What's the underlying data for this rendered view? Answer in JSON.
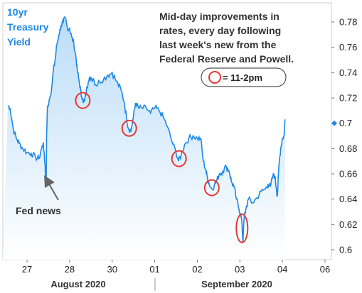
{
  "colors": {
    "line": "#1E88E5",
    "area_top": "#BBDDF8",
    "area_bottom": "#FFFFFF",
    "highlight": "#E53935",
    "title": "#1E88E5",
    "axis": "#777777",
    "grid": "#E8E8E8",
    "annotation_arrow": "#666666",
    "legend_border": "#555555"
  },
  "title_lines": [
    "10yr",
    "Treasury",
    "Yield"
  ],
  "annotation": {
    "lines": [
      "Mid-day improvements in",
      "rates, every day following",
      "last week's new from the",
      "Federal Reserve and Powell."
    ],
    "legend_text": "= 11-2pm"
  },
  "fed_label": "Fed news",
  "months": [
    {
      "label": "August 2020",
      "start": 0,
      "end": 2
    },
    {
      "label": "September 2020",
      "start": 3,
      "end": 7
    }
  ],
  "chart_data": {
    "type": "line",
    "subtype": "area",
    "series_name": "",
    "x_ticks": [
      "27",
      "28",
      "30",
      "01",
      "02",
      "03",
      "04",
      "06"
    ],
    "y_ticks": [
      "0.78",
      "0.76",
      "0.74",
      "0.72",
      "0.7",
      "0.68",
      "0.66",
      "0.64",
      "0.62",
      "0.6"
    ],
    "ylim": [
      0.6,
      0.785
    ],
    "xlim": [
      -0.45,
      7.0
    ],
    "grid": false,
    "last_value_marker": 0.7,
    "points": [
      [
        -0.45,
        0.714
      ],
      [
        -0.4,
        0.712
      ],
      [
        -0.32,
        0.695
      ],
      [
        -0.25,
        0.688
      ],
      [
        -0.18,
        0.684
      ],
      [
        -0.1,
        0.68
      ],
      [
        0.0,
        0.677
      ],
      [
        0.1,
        0.676
      ],
      [
        0.2,
        0.673
      ],
      [
        0.28,
        0.672
      ],
      [
        0.35,
        0.681
      ],
      [
        0.38,
        0.684
      ],
      [
        0.4,
        0.678
      ],
      [
        0.42,
        0.669
      ],
      [
        0.44,
        0.655
      ],
      [
        0.45,
        0.65
      ],
      [
        0.46,
        0.69
      ],
      [
        0.48,
        0.712
      ],
      [
        0.52,
        0.718
      ],
      [
        0.58,
        0.728
      ],
      [
        0.62,
        0.742
      ],
      [
        0.66,
        0.75
      ],
      [
        0.7,
        0.762
      ],
      [
        0.75,
        0.77
      ],
      [
        0.8,
        0.777
      ],
      [
        0.85,
        0.78
      ],
      [
        0.9,
        0.783
      ],
      [
        0.95,
        0.775
      ],
      [
        1.0,
        0.775
      ],
      [
        1.05,
        0.768
      ],
      [
        1.1,
        0.763
      ],
      [
        1.15,
        0.752
      ],
      [
        1.18,
        0.742
      ],
      [
        1.22,
        0.734
      ],
      [
        1.26,
        0.726
      ],
      [
        1.28,
        0.722
      ],
      [
        1.32,
        0.716
      ],
      [
        1.36,
        0.719
      ],
      [
        1.4,
        0.729
      ],
      [
        1.45,
        0.733
      ],
      [
        1.5,
        0.736
      ],
      [
        1.56,
        0.735
      ],
      [
        1.62,
        0.73
      ],
      [
        1.7,
        0.733
      ],
      [
        1.8,
        0.735
      ],
      [
        1.9,
        0.738
      ],
      [
        2.0,
        0.74
      ],
      [
        2.1,
        0.733
      ],
      [
        2.2,
        0.727
      ],
      [
        2.28,
        0.717
      ],
      [
        2.34,
        0.704
      ],
      [
        2.38,
        0.696
      ],
      [
        2.44,
        0.694
      ],
      [
        2.5,
        0.705
      ],
      [
        2.55,
        0.716
      ],
      [
        2.62,
        0.712
      ],
      [
        2.7,
        0.712
      ],
      [
        2.8,
        0.712
      ],
      [
        2.9,
        0.708
      ],
      [
        3.0,
        0.712
      ],
      [
        3.1,
        0.71
      ],
      [
        3.2,
        0.705
      ],
      [
        3.3,
        0.697
      ],
      [
        3.4,
        0.686
      ],
      [
        3.5,
        0.677
      ],
      [
        3.56,
        0.67
      ],
      [
        3.62,
        0.675
      ],
      [
        3.7,
        0.683
      ],
      [
        3.8,
        0.688
      ],
      [
        3.9,
        0.69
      ],
      [
        4.0,
        0.688
      ],
      [
        4.08,
        0.688
      ],
      [
        4.14,
        0.67
      ],
      [
        4.2,
        0.663
      ],
      [
        4.24,
        0.656
      ],
      [
        4.28,
        0.652
      ],
      [
        4.34,
        0.648
      ],
      [
        4.4,
        0.651
      ],
      [
        4.46,
        0.655
      ],
      [
        4.52,
        0.66
      ],
      [
        4.6,
        0.662
      ],
      [
        4.68,
        0.666
      ],
      [
        4.75,
        0.662
      ],
      [
        4.8,
        0.654
      ],
      [
        4.86,
        0.65
      ],
      [
        4.92,
        0.64
      ],
      [
        4.98,
        0.632
      ],
      [
        5.02,
        0.628
      ],
      [
        5.05,
        0.62
      ],
      [
        5.07,
        0.606
      ],
      [
        5.1,
        0.625
      ],
      [
        5.14,
        0.632
      ],
      [
        5.2,
        0.64
      ],
      [
        5.3,
        0.637
      ],
      [
        5.4,
        0.641
      ],
      [
        5.5,
        0.646
      ],
      [
        5.6,
        0.648
      ],
      [
        5.66,
        0.652
      ],
      [
        5.72,
        0.65
      ],
      [
        5.78,
        0.659
      ],
      [
        5.82,
        0.658
      ],
      [
        5.86,
        0.648
      ],
      [
        5.88,
        0.642
      ],
      [
        5.92,
        0.668
      ],
      [
        5.96,
        0.68
      ],
      [
        6.0,
        0.688
      ],
      [
        6.04,
        0.69
      ],
      [
        6.06,
        0.703
      ]
    ],
    "highlights": [
      {
        "x": 1.31,
        "y": 0.718
      },
      {
        "x": 2.4,
        "y": 0.696
      },
      {
        "x": 3.57,
        "y": 0.672
      },
      {
        "x": 4.34,
        "y": 0.649
      },
      {
        "x": 5.05,
        "y": 0.617
      }
    ],
    "fed_event_x": 0.45
  }
}
